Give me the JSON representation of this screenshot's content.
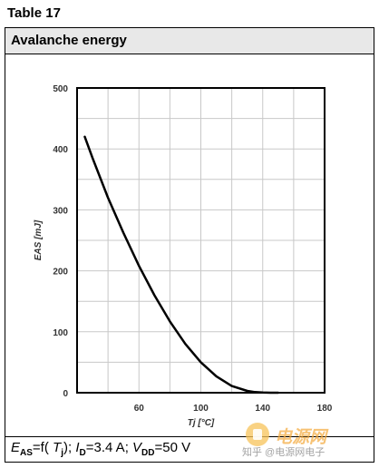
{
  "table_label": "Table 17",
  "header": {
    "title": "Avalanche energy"
  },
  "caption": {
    "e_main": "E",
    "e_sub": "AS",
    "eq_open": "=f(",
    "t_main": "T",
    "t_sub": "j",
    "eq_close": ");",
    "i_main": "I",
    "i_sub": "D",
    "i_value": "=3.4 A;",
    "v_main": "V",
    "v_sub": "DD",
    "v_value": "=50 V"
  },
  "watermark": {
    "brand": "电源网",
    "site": "知乎 @电源网电子"
  },
  "chart_data": {
    "type": "line",
    "title": "",
    "xlabel": "Tj [°C]",
    "ylabel": "EAS [mJ]",
    "xlim": [
      20,
      180
    ],
    "ylim": [
      0,
      500
    ],
    "x_ticks": [
      20,
      60,
      100,
      140,
      180
    ],
    "y_ticks": [
      0,
      100,
      200,
      300,
      400,
      500
    ],
    "grid": true,
    "series": [
      {
        "x": [
          25,
          30,
          40,
          50,
          60,
          70,
          80,
          90,
          100,
          110,
          120,
          130,
          135,
          140,
          145,
          150
        ],
        "values": [
          420,
          385,
          320,
          262,
          208,
          160,
          117,
          80,
          50,
          27,
          11,
          3,
          1,
          0.3,
          0,
          0
        ],
        "color": "#000000"
      }
    ]
  }
}
